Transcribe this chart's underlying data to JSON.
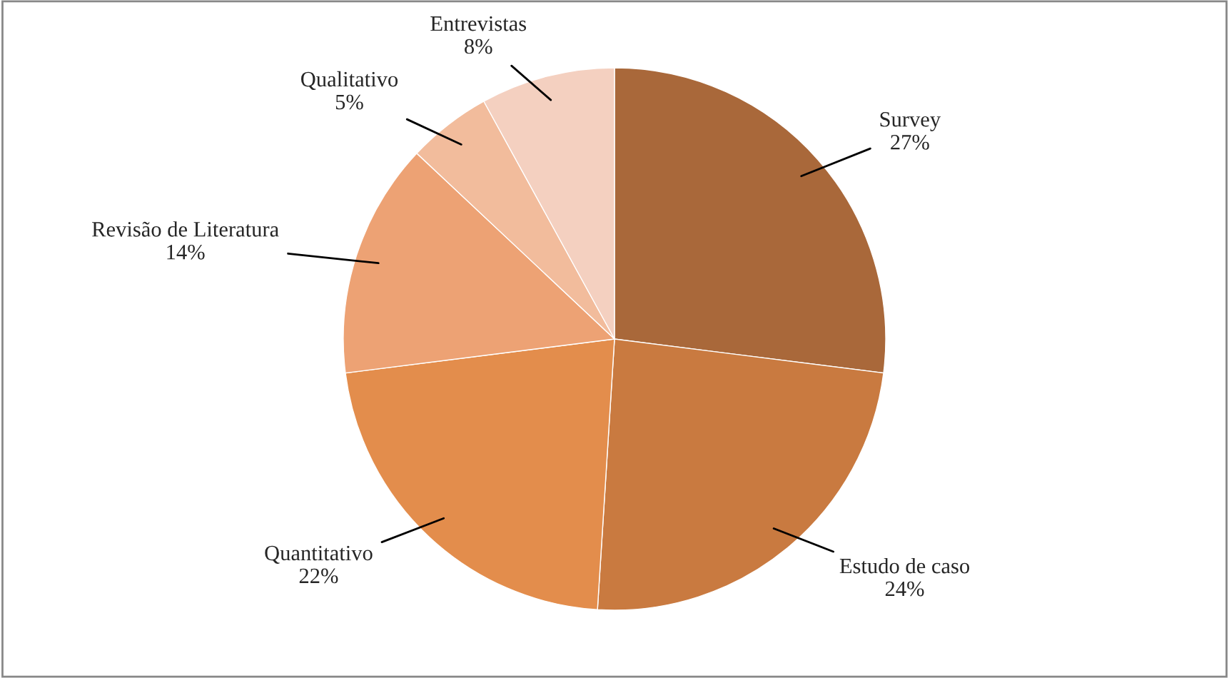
{
  "chart_data": {
    "type": "pie",
    "categories": [
      "Survey",
      "Estudo de caso",
      "Quantitativo",
      "Revisão de Literatura",
      "Qualitativo",
      "Entrevistas"
    ],
    "values": [
      27,
      24,
      22,
      14,
      5,
      8
    ],
    "value_labels": [
      "27%",
      "24%",
      "22%",
      "14%",
      "5%",
      "8%"
    ],
    "colors": [
      "#a9683a",
      "#c97a40",
      "#e38d4c",
      "#eda274",
      "#f2bc9c",
      "#f4d0c0"
    ]
  }
}
